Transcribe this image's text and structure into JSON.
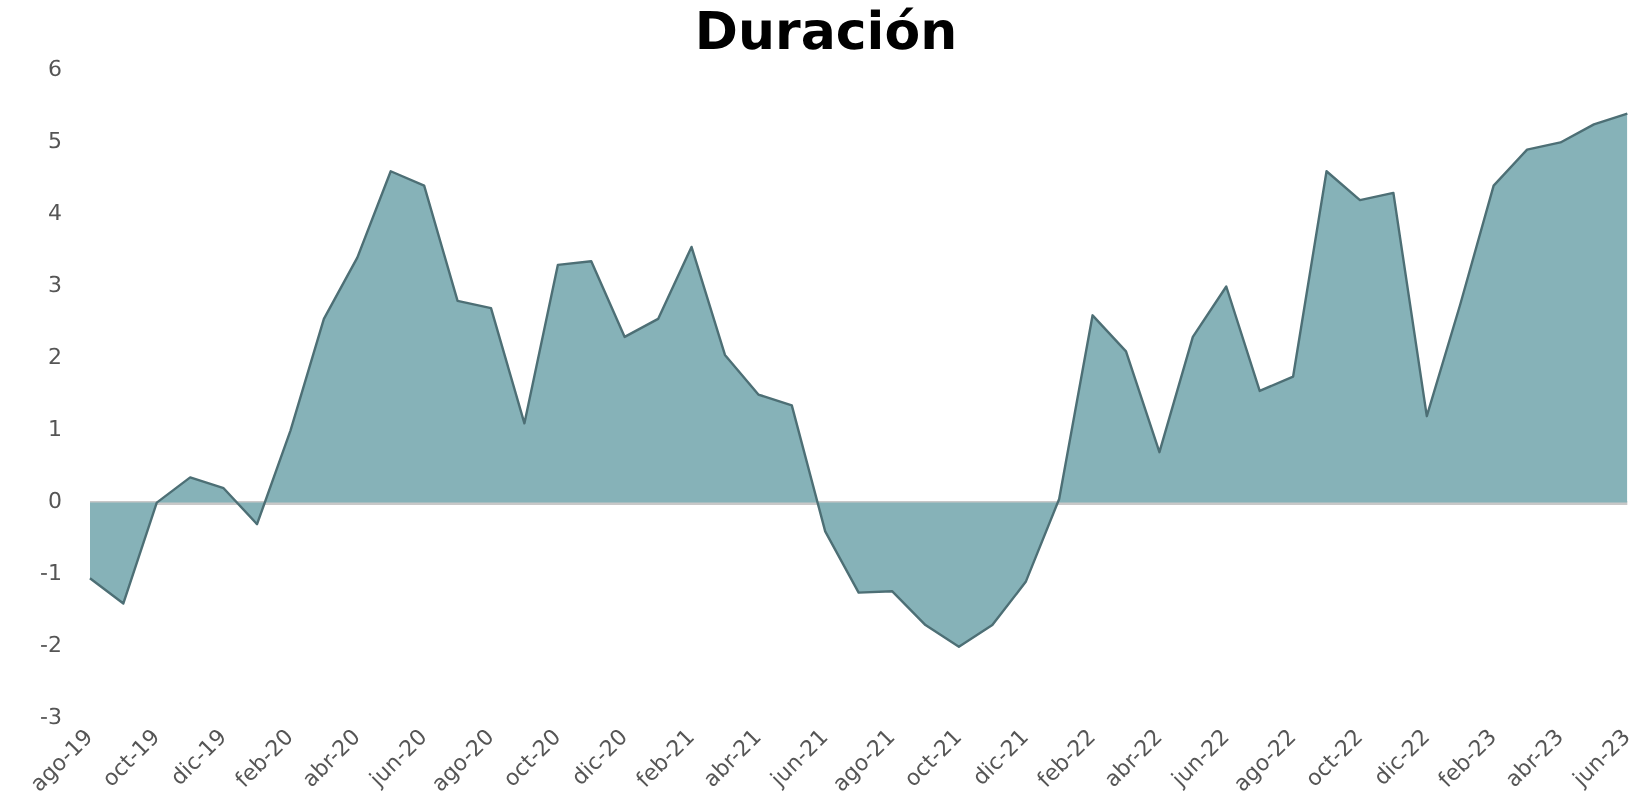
{
  "chart_data": {
    "type": "area",
    "title": "Duración",
    "categories": [
      "ago-19",
      null,
      "oct-19",
      null,
      "dic-19",
      null,
      "feb-20",
      null,
      "abr-20",
      null,
      "jun-20",
      null,
      "ago-20",
      null,
      "oct-20",
      null,
      "dic-20",
      null,
      "feb-21",
      null,
      "abr-21",
      null,
      "jun-21",
      null,
      "ago-21",
      null,
      "oct-21",
      null,
      "dic-21",
      null,
      "feb-22",
      null,
      "abr-22",
      null,
      "jun-22",
      null,
      "ago-22",
      null,
      "oct-22",
      null,
      "dic-22",
      null,
      "feb-23",
      null,
      "abr-23",
      null,
      "jun-23"
    ],
    "series": [
      {
        "color": "#86b2b8",
        "values": [
          -1.05,
          -1.4,
          0,
          0.35,
          0.2,
          -0.3,
          1.0,
          2.55,
          3.4,
          4.6,
          4.4,
          2.8,
          2.7,
          1.1,
          3.3,
          3.35,
          2.3,
          2.55,
          3.55,
          2.05,
          1.5,
          1.35,
          -0.4,
          -1.25,
          -1.23,
          -1.7,
          -2.0,
          -1.7,
          -1.1,
          0.05,
          2.6,
          2.1,
          0.7,
          2.3,
          3.0,
          1.55,
          1.75,
          4.6,
          4.2,
          4.3,
          1.2,
          2.75,
          4.4,
          4.9,
          5.0,
          5.25,
          5.4
        ]
      }
    ],
    "ylim": [
      -3,
      6
    ],
    "yticks": [
      -3,
      -2,
      -1,
      0,
      1,
      2,
      3,
      4,
      5,
      6
    ]
  }
}
